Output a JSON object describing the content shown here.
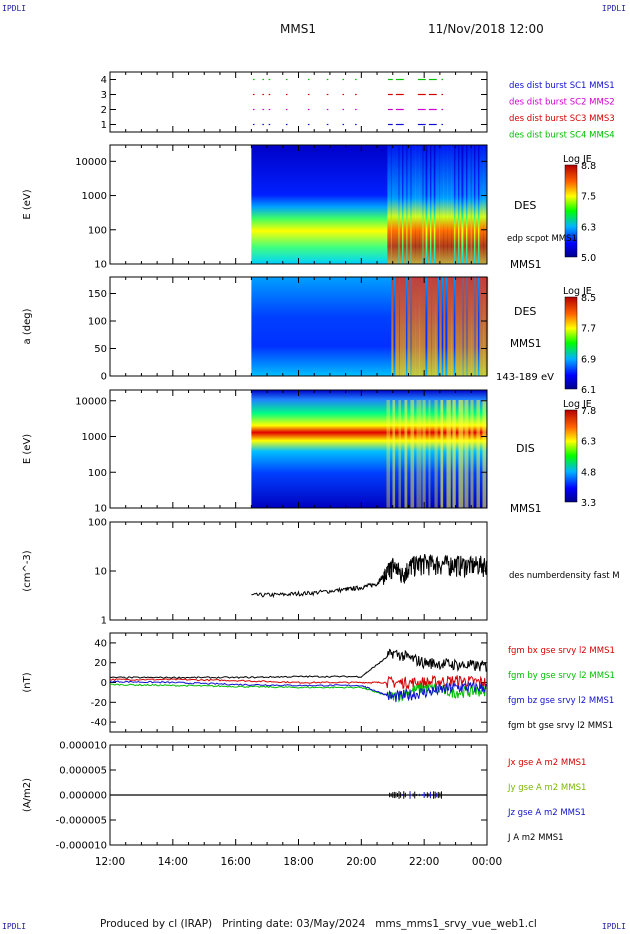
{
  "header": {
    "corner_left": "IPDLI",
    "corner_right": "IPDLI",
    "corner_bottom_left": "IPDLI",
    "corner_bottom_right": "IPDLI",
    "spacecraft": "MMS1",
    "date": "11/Nov/2018 12:00"
  },
  "footer": {
    "text": "Produced by cl (IRAP)   Printing date: 03/May/2024   mms_mms1_srvy_vue_web1.cl"
  },
  "colors": {
    "frame": "#000000",
    "red": "#d40000",
    "green": "#00c000",
    "blue": "#1010d0",
    "magenta": "#d000d0",
    "cool": "#0000b4",
    "hot": "#c80000"
  },
  "chart_data": [
    {
      "id": "burst",
      "type": "scatter",
      "ylim": [
        0.5,
        4.5
      ],
      "yticks": [
        "1",
        "2",
        "3",
        "4"
      ],
      "legend": [
        {
          "label": "des dist burst SC1 MMS1",
          "color": "#1010d0"
        },
        {
          "label": "des dist burst SC2 MMS2",
          "color": "#d000d0"
        },
        {
          "label": "des dist burst SC3 MMS3",
          "color": "#d40000"
        },
        {
          "label": "des dist burst SC4 MMS4",
          "color": "#00c000"
        }
      ],
      "segments_hours": [
        [
          16.55,
          16.6
        ],
        [
          16.85,
          16.9
        ],
        [
          17.05,
          17.1
        ],
        [
          17.6,
          17.65
        ],
        [
          18.3,
          18.35
        ],
        [
          18.9,
          18.95
        ],
        [
          19.4,
          19.45
        ],
        [
          19.8,
          19.85
        ],
        [
          20.85,
          21.0
        ],
        [
          21.1,
          21.35
        ],
        [
          21.8,
          22.05
        ],
        [
          22.15,
          22.4
        ],
        [
          22.55,
          22.6
        ]
      ]
    },
    {
      "id": "des-energy",
      "type": "heatmap",
      "ylabel": "E (eV)",
      "yscale": "log",
      "yticks": [
        "10",
        "100",
        "1000",
        "10000"
      ],
      "ylim": [
        10,
        30000
      ],
      "data_start_hour": 16.5,
      "colorbar": {
        "title": "Log JE",
        "ticks": [
          "8.8",
          "7.5",
          "6.3",
          "5.0"
        ]
      },
      "labels": [
        "DES",
        "edp scpot MMS1",
        "MMS1"
      ]
    },
    {
      "id": "des-pitch",
      "type": "heatmap",
      "ylabel": "a (deg)",
      "yticks": [
        "0",
        "50",
        "100",
        "150"
      ],
      "ylim": [
        0,
        180
      ],
      "data_start_hour": 16.5,
      "colorbar": {
        "title": "Log JE",
        "ticks": [
          "8.5",
          "7.7",
          "6.9",
          "6.1"
        ]
      },
      "labels": [
        "DES",
        "MMS1",
        "143-189 eV"
      ]
    },
    {
      "id": "dis-energy",
      "type": "heatmap",
      "ylabel": "E (eV)",
      "yscale": "log",
      "yticks": [
        "10",
        "100",
        "1000",
        "10000"
      ],
      "ylim": [
        10,
        20000
      ],
      "data_start_hour": 16.5,
      "colorbar": {
        "title": "Log JE",
        "ticks": [
          "7.8",
          "6.3",
          "4.8",
          "3.3"
        ]
      },
      "labels": [
        "DIS",
        "MMS1"
      ]
    },
    {
      "id": "density",
      "type": "line",
      "ylabel": "(cm^-3)",
      "yscale": "log",
      "yticks": [
        "1",
        "10",
        "100"
      ],
      "ylim": [
        1,
        100
      ],
      "legend": [
        {
          "label": "des numberdensity fast M",
          "color": "#000000"
        }
      ],
      "series": [
        {
          "x": [
            16.5,
            17.5,
            18.5,
            19.5,
            20.0,
            20.5,
            20.8,
            21.0,
            21.3,
            21.6,
            22.0,
            22.5,
            23.0,
            23.5,
            24.0
          ],
          "y": [
            3.2,
            3.3,
            3.6,
            4.2,
            4.6,
            5.5,
            9.0,
            14.0,
            9.0,
            14.0,
            16.0,
            15.0,
            15.0,
            14.0,
            15.0
          ]
        }
      ]
    },
    {
      "id": "fgm",
      "type": "line",
      "ylabel": "(nT)",
      "yticks": [
        "-40",
        "-20",
        "0",
        "20",
        "40"
      ],
      "ylim": [
        -50,
        50
      ],
      "legend": [
        {
          "label": "fgm bx gse srvy l2 MMS1",
          "color": "#d40000"
        },
        {
          "label": "fgm by gse srvy l2 MMS1",
          "color": "#00c000"
        },
        {
          "label": "fgm bz gse srvy l2 MMS1",
          "color": "#1010d0"
        },
        {
          "label": "fgm bt gse srvy l2 MMS1",
          "color": "#000000"
        }
      ],
      "series": [
        {
          "name": "fgm bx gse srvy l2 MMS1",
          "color": "#d40000",
          "x": [
            12,
            14,
            16,
            18,
            20,
            21,
            22,
            23,
            24
          ],
          "y": [
            3,
            3,
            2,
            0,
            0,
            0,
            0,
            2,
            0
          ]
        },
        {
          "name": "fgm by gse srvy l2 MMS1",
          "color": "#00c000",
          "x": [
            12,
            14,
            16,
            18,
            20,
            21,
            22,
            23,
            24
          ],
          "y": [
            -2,
            -3,
            -4,
            -5,
            -5,
            -15,
            -5,
            -10,
            -8
          ]
        },
        {
          "name": "fgm bz gse srvy l2 MMS1",
          "color": "#1010d0",
          "x": [
            12,
            14,
            16,
            18,
            20,
            21,
            22,
            23,
            24
          ],
          "y": [
            1,
            0,
            -2,
            -3,
            -3,
            -15,
            -10,
            -5,
            -5
          ]
        },
        {
          "name": "fgm bt gse srvy l2 MMS1",
          "color": "#000000",
          "x": [
            12,
            14,
            16,
            18,
            20,
            21,
            22,
            23,
            24
          ],
          "y": [
            5,
            5,
            5,
            6,
            6,
            30,
            20,
            18,
            16
          ]
        }
      ]
    },
    {
      "id": "current",
      "type": "line",
      "ylabel": "(A/m2)",
      "yticks": [
        "-0.000010",
        "-0.000005",
        "0.000000",
        "0.000005",
        "0.000010"
      ],
      "ylim": [
        -1e-05,
        1e-05
      ],
      "legend": [
        {
          "label": "Jx gse A m2 MMS1",
          "color": "#d40000"
        },
        {
          "label": "Jy gse A m2 MMS1",
          "color": "#7ab800"
        },
        {
          "label": "Jz gse A m2 MMS1",
          "color": "#1010d0"
        },
        {
          "label": "J A m2 MMS1",
          "color": "#000000"
        }
      ],
      "series": [
        {
          "name": "J A m2 MMS1",
          "color": "#000000",
          "x": [
            12,
            21.0,
            21.5,
            22.0,
            22.5,
            24
          ],
          "y": [
            0,
            1e-06,
            -8e-07,
            8e-07,
            -5e-07,
            0
          ]
        }
      ]
    }
  ],
  "xaxis": {
    "ticks": [
      "12:00",
      "14:00",
      "16:00",
      "18:00",
      "20:00",
      "22:00",
      "00:00"
    ]
  }
}
